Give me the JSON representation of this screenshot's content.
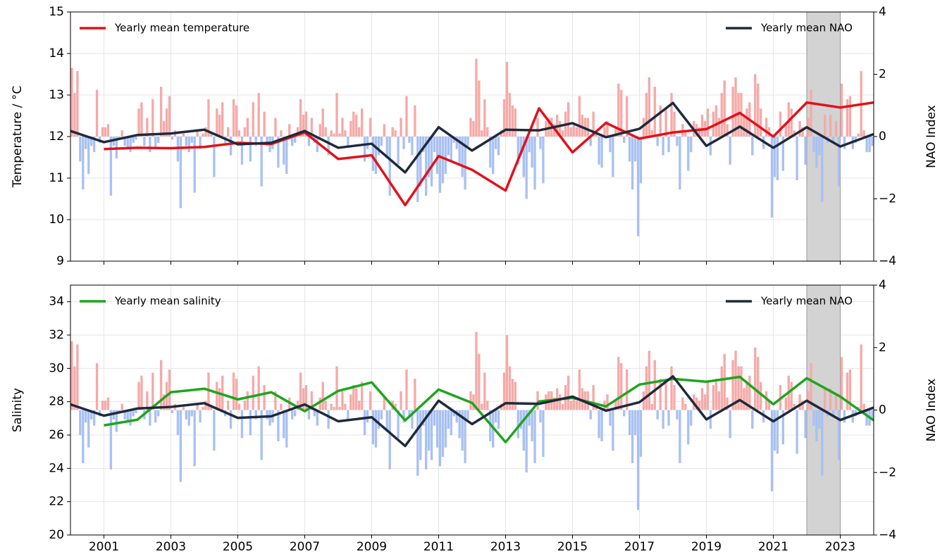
{
  "chart_data": [
    {
      "type": "line",
      "ylabel": "Temperature / °C",
      "y2label": "NAO Index",
      "xlim": [
        2000,
        2024
      ],
      "xticks": [
        2001,
        2003,
        2005,
        2007,
        2009,
        2011,
        2013,
        2015,
        2017,
        2019,
        2021,
        2023
      ],
      "ylim": [
        9,
        15
      ],
      "yticks": [
        9,
        10,
        11,
        12,
        13,
        14,
        15
      ],
      "y2lim": [
        -4,
        4
      ],
      "y2ticks": [
        {
          "value": -4,
          "label": "−4"
        },
        {
          "value": -2,
          "label": "−2"
        },
        0,
        2,
        4
      ],
      "grid": true,
      "span": [
        2022,
        2023
      ],
      "span_color": "#d3d3d3",
      "bar_colors": {
        "positive": "#f5aaa8",
        "negative": "#a9c1f2"
      },
      "nao_monthly": [
        {
          "year": 2000,
          "values": [
            2.2,
            1.4,
            2.1,
            -0.8,
            -1.7,
            -0.4,
            -1.2,
            -0.3,
            -0.5,
            1.5,
            -0.2,
            0.3
          ]
        },
        {
          "year": 2001,
          "values": [
            0.3,
            0.4,
            -1.9,
            -0.3,
            -0.7,
            -0.1,
            0.2,
            -0.3,
            -0.4,
            -0.5,
            -0.2,
            -0.1
          ]
        },
        {
          "year": 2002,
          "values": [
            0.9,
            1.1,
            -0.3,
            0.6,
            -0.5,
            1.2,
            -0.4,
            -0.2,
            1.6,
            0.5,
            0.9,
            1.3
          ]
        },
        {
          "year": 2003,
          "values": [
            -0.1,
            0.2,
            -0.8,
            -2.3,
            0.1,
            -0.3,
            -0.5,
            -0.2,
            -1.8,
            0.2,
            -0.4,
            0.1
          ]
        },
        {
          "year": 2004,
          "values": [
            0.3,
            1.2,
            0.1,
            -1.3,
            0.9,
            0.7,
            1.1,
            -0.2,
            0.3,
            -0.6,
            1.2,
            1.0
          ]
        },
        {
          "year": 2005,
          "values": [
            0.2,
            -0.9,
            0.3,
            0.6,
            -0.8,
            1.1,
            -0.3,
            1.4,
            -1.6,
            0.8,
            -0.3,
            -0.5
          ]
        },
        {
          "year": 2006,
          "values": [
            -0.4,
            0.6,
            -1.0,
            0.2,
            -0.9,
            -1.2,
            0.4,
            -0.3,
            -0.2,
            0.3,
            1.2,
            0.7
          ]
        },
        {
          "year": 2007,
          "values": [
            0.8,
            -0.3,
            0.6,
            -0.2,
            -0.5,
            0.4,
            0.9,
            0.3,
            -0.6,
            0.2,
            0.1,
            1.4
          ]
        },
        {
          "year": 2008,
          "values": [
            0.1,
            0.6,
            0.2,
            -0.3,
            0.5,
            0.8,
            0.7,
            0.3,
            0.9,
            -0.8,
            -0.4,
            0.6
          ]
        },
        {
          "year": 2009,
          "values": [
            -1.1,
            -1.2,
            -0.6,
            -0.3,
            0.4,
            -0.7,
            -1.9,
            0.3,
            0.2,
            -0.9,
            0.6,
            -0.4
          ]
        },
        {
          "year": 2010,
          "values": [
            1.3,
            -0.2,
            -0.6,
            1.0,
            -2.1,
            -1.6,
            -0.5,
            -1.9,
            -1.3,
            -1.6,
            -0.5,
            -1.2
          ]
        },
        {
          "year": 2011,
          "values": [
            -1.8,
            -1.5,
            -1.2,
            -0.6,
            -0.8,
            -0.2,
            -0.4,
            -0.9,
            -1.3,
            -1.7,
            -0.3,
            0.6
          ]
        },
        {
          "year": 2012,
          "values": [
            0.5,
            2.5,
            1.8,
            0.2,
            1.2,
            0.3,
            -1.0,
            -1.2,
            -0.4,
            -0.6,
            0.2,
            1.2
          ]
        },
        {
          "year": 2013,
          "values": [
            2.4,
            1.4,
            1.0,
            0.9,
            -0.9,
            -0.6,
            -1.3,
            -2.0,
            -0.5,
            -1.0,
            -1.7,
            0.6
          ]
        },
        {
          "year": 2014,
          "values": [
            -0.4,
            -1.5,
            0.5,
            0.6,
            0.6,
            0.4,
            0.7,
            0.5,
            0.2,
            0.8,
            1.1,
            0.3
          ]
        },
        {
          "year": 2015,
          "values": [
            0.4,
            0.3,
            1.3,
            0.7,
            0.6,
            0.6,
            -0.3,
            0.8,
            0.1,
            -0.9,
            -1.0,
            0.3
          ]
        },
        {
          "year": 2016,
          "values": [
            0.5,
            -0.5,
            -1.3,
            0.3,
            1.7,
            1.5,
            -0.2,
            1.3,
            -0.8,
            -1.7,
            -0.8,
            -3.2
          ]
        },
        {
          "year": 2017,
          "values": [
            -1.5,
            0.6,
            1.4,
            1.9,
            0.2,
            1.6,
            -0.3,
            1.0,
            -0.6,
            0.9,
            -0.5,
            1.4
          ]
        },
        {
          "year": 2018,
          "values": [
            0.8,
            -0.3,
            -1.7,
            0.4,
            0.2,
            -1.1,
            -0.5,
            0.5,
            0.4,
            0.3,
            0.7,
            0.5
          ]
        },
        {
          "year": 2019,
          "values": [
            0.9,
            -0.6,
            0.8,
            1.0,
            0.6,
            1.4,
            1.8,
            0.4,
            -0.9,
            1.6,
            1.9,
            1.4
          ]
        },
        {
          "year": 2020,
          "values": [
            1.4,
            0.7,
            0.9,
            1.1,
            -0.6,
            2.0,
            1.7,
            0.9,
            -0.4,
            0.6,
            0.3,
            -2.6
          ]
        },
        {
          "year": 2021,
          "values": [
            -1.3,
            -1.4,
            0.8,
            -1.1,
            0.4,
            1.1,
            0.9,
            0.2,
            -1.4,
            0.5,
            0.3,
            -0.9
          ]
        },
        {
          "year": 2022,
          "values": [
            0.6,
            1.5,
            -0.5,
            -1.0,
            -0.6,
            -2.1,
            0.7,
            -0.2,
            0.7,
            -0.2,
            0.5,
            -1.6
          ]
        },
        {
          "year": 2023,
          "values": [
            1.7,
            -0.4,
            1.2,
            1.3,
            -0.4,
            -0.2,
            0.1,
            2.1,
            0.2,
            -0.5,
            -0.5,
            -0.3
          ]
        }
      ],
      "series": [
        {
          "name": "Yearly mean temperature",
          "color": "#e2111a",
          "x": [
            2001,
            2002,
            2003,
            2004,
            2005,
            2006,
            2007,
            2008,
            2009,
            2010,
            2011,
            2012,
            2013,
            2014,
            2015,
            2016,
            2017,
            2018,
            2019,
            2020,
            2021,
            2022,
            2023,
            2024
          ],
          "values": [
            11.7,
            11.73,
            11.72,
            11.75,
            11.85,
            11.82,
            12.1,
            11.46,
            11.55,
            10.35,
            11.53,
            11.2,
            10.7,
            12.68,
            11.62,
            12.33,
            11.95,
            12.1,
            12.18,
            12.57,
            12.0,
            12.82,
            12.7,
            12.82
          ]
        },
        {
          "name": "Yearly mean NAO",
          "color": "#1f2a3c",
          "axis": "y2",
          "x": [
            2000,
            2001,
            2002,
            2003,
            2004,
            2005,
            2006,
            2007,
            2008,
            2009,
            2010,
            2011,
            2012,
            2013,
            2014,
            2015,
            2016,
            2017,
            2018,
            2019,
            2020,
            2021,
            2022,
            2023,
            2024
          ],
          "values": [
            0.18,
            -0.18,
            0.05,
            0.1,
            0.22,
            -0.25,
            -0.2,
            0.18,
            -0.36,
            -0.23,
            -1.15,
            0.3,
            -0.45,
            0.22,
            0.2,
            0.43,
            -0.02,
            0.25,
            1.08,
            -0.3,
            0.32,
            -0.36,
            0.3,
            -0.32,
            0.08
          ]
        }
      ]
    },
    {
      "type": "line",
      "ylabel": "Salinity",
      "y2label": "NAO Index",
      "xlim": [
        2000,
        2024
      ],
      "xticks": [
        2001,
        2003,
        2005,
        2007,
        2009,
        2011,
        2013,
        2015,
        2017,
        2019,
        2021,
        2023
      ],
      "ylim": [
        20,
        35
      ],
      "yticks": [
        20,
        22,
        24,
        26,
        28,
        30,
        32,
        34
      ],
      "y2lim": [
        -4,
        4
      ],
      "y2ticks": [
        {
          "value": -4,
          "label": "−4"
        },
        {
          "value": -2,
          "label": "−2"
        },
        0,
        2,
        4
      ],
      "grid": true,
      "span": [
        2022,
        2023
      ],
      "span_color": "#d3d3d3",
      "series": [
        {
          "name": "Yearly mean salinity",
          "color": "#1fa51f",
          "x": [
            2001,
            2002,
            2003,
            2004,
            2005,
            2006,
            2007,
            2008,
            2009,
            2010,
            2011,
            2012,
            2013,
            2014,
            2015,
            2016,
            2017,
            2018,
            2019,
            2020,
            2021,
            2022,
            2023,
            2024
          ],
          "values": [
            26.58,
            26.92,
            28.57,
            28.78,
            28.14,
            28.57,
            27.43,
            28.65,
            29.16,
            26.88,
            28.73,
            27.93,
            25.57,
            28.02,
            28.23,
            27.72,
            29.03,
            29.37,
            29.2,
            29.49,
            27.85,
            29.41,
            28.31,
            26.88
          ]
        },
        {
          "name": "Yearly mean NAO",
          "color": "#1f2a3c",
          "axis": "y2",
          "x": [
            2000,
            2001,
            2002,
            2003,
            2004,
            2005,
            2006,
            2007,
            2008,
            2009,
            2010,
            2011,
            2012,
            2013,
            2014,
            2015,
            2016,
            2017,
            2018,
            2019,
            2020,
            2021,
            2022,
            2023,
            2024
          ],
          "values": [
            0.18,
            -0.18,
            0.05,
            0.1,
            0.22,
            -0.25,
            -0.2,
            0.18,
            -0.36,
            -0.23,
            -1.15,
            0.3,
            -0.45,
            0.22,
            0.2,
            0.43,
            -0.02,
            0.25,
            1.08,
            -0.3,
            0.32,
            -0.36,
            0.3,
            -0.32,
            0.08
          ]
        }
      ]
    }
  ]
}
